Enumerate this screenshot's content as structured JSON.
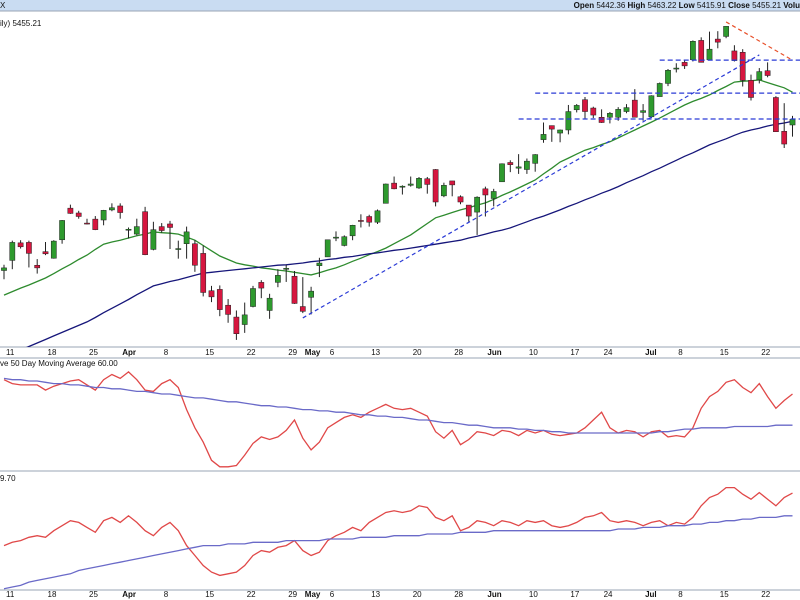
{
  "chart_data": [
    {
      "type": "candlestick",
      "symbol": "X",
      "title": "ily) 5455.21",
      "quote": [
        {
          "label": "Open",
          "value": "5442.36"
        },
        {
          "label": "High",
          "value": "5463.22"
        },
        {
          "label": "Low",
          "value": "5415.91"
        },
        {
          "label": "Close",
          "value": "5455.21"
        },
        {
          "label": "Volu"
        }
      ],
      "categories": [
        "11",
        null,
        null,
        null,
        null,
        "18",
        null,
        null,
        null,
        null,
        "25",
        null,
        null,
        null,
        "Apr",
        null,
        null,
        null,
        null,
        "8",
        null,
        null,
        null,
        null,
        "15",
        null,
        null,
        null,
        null,
        "22",
        null,
        null,
        null,
        null,
        "29",
        null,
        "May",
        null,
        null,
        "6",
        null,
        null,
        null,
        null,
        "13",
        null,
        null,
        null,
        null,
        "20",
        null,
        null,
        null,
        null,
        "28",
        null,
        null,
        null,
        "Jun",
        null,
        null,
        null,
        null,
        "10",
        null,
        null,
        null,
        null,
        "17",
        null,
        null,
        null,
        "24",
        null,
        null,
        null,
        null,
        "Jul",
        null,
        null,
        null,
        "8",
        null,
        null,
        null,
        null,
        "15",
        null,
        null,
        null,
        null,
        "22",
        null,
        null,
        null,
        null
      ],
      "open": [
        5111,
        5134,
        5174,
        5175,
        5123,
        5154,
        5139,
        5181,
        5253,
        5242,
        5219,
        5228,
        5226,
        5249,
        5258,
        5204,
        5194,
        5245,
        5159,
        5211,
        5217,
        5159,
        5172,
        5172,
        5150,
        5065,
        5068,
        5032,
        5005,
        4988,
        5029,
        5084,
        5020,
        5084,
        5114,
        5098,
        5029,
        5050,
        5122,
        5142,
        5187,
        5168,
        5190,
        5225,
        5234,
        5221,
        5264,
        5310,
        5303,
        5305,
        5299,
        5320,
        5341,
        5281,
        5315,
        5279,
        5260,
        5244,
        5297,
        5275,
        5313,
        5357,
        5344,
        5341,
        5355,
        5409,
        5441,
        5424,
        5431,
        5477,
        5500,
        5481,
        5460,
        5460,
        5460,
        5473,
        5499,
        5471,
        5461,
        5507,
        5537,
        5572,
        5585,
        5591,
        5635,
        5591,
        5638,
        5644,
        5611,
        5608,
        5544,
        5545,
        5566,
        5505,
        5428,
        5442.36
      ],
      "high": [
        5124,
        5179,
        5180,
        5179,
        5137,
        5176,
        5180,
        5226,
        5261,
        5247,
        5229,
        5235,
        5249,
        5264,
        5264,
        5209,
        5229,
        5256,
        5222,
        5219,
        5224,
        5179,
        5211,
        5180,
        5168,
        5076,
        5077,
        5046,
        5020,
        5038,
        5076,
        5089,
        5058,
        5114,
        5124,
        5110,
        5096,
        5074,
        5140,
        5181,
        5200,
        5191,
        5215,
        5239,
        5238,
        5250,
        5309,
        5325,
        5305,
        5325,
        5324,
        5324,
        5342,
        5311,
        5315,
        5282,
        5260,
        5280,
        5302,
        5297,
        5355,
        5362,
        5376,
        5366,
        5376,
        5448,
        5441,
        5432,
        5488,
        5490,
        5506,
        5484,
        5478,
        5472,
        5483,
        5490,
        5524,
        5490,
        5510,
        5539,
        5570,
        5583,
        5590,
        5635,
        5642,
        5655,
        5656,
        5667,
        5624,
        5615,
        5557,
        5572,
        5585,
        5508,
        5492,
        5463.22
      ],
      "low": [
        5091,
        5114,
        5161,
        5118,
        5104,
        5146,
        5138,
        5172,
        5240,
        5229,
        5216,
        5203,
        5214,
        5246,
        5229,
        5184,
        5191,
        5146,
        5157,
        5197,
        5160,
        5138,
        5138,
        5108,
        5052,
        5039,
        5007,
        4992,
        4953,
        4969,
        5027,
        5048,
        5001,
        5073,
        5085,
        5035,
        5014,
        5011,
        5096,
        5142,
        5178,
        5166,
        5180,
        5209,
        5211,
        5217,
        5264,
        5296,
        5284,
        5302,
        5297,
        5286,
        5257,
        5278,
        5280,
        5262,
        5222,
        5192,
        5234,
        5257,
        5313,
        5335,
        5331,
        5331,
        5336,
        5402,
        5404,
        5403,
        5421,
        5471,
        5455,
        5458,
        5447,
        5446,
        5452,
        5469,
        5460,
        5452,
        5458,
        5507,
        5531,
        5562,
        5570,
        5587,
        5585,
        5590,
        5617,
        5640,
        5587,
        5530,
        5498,
        5537,
        5551,
        5427,
        5390,
        5415.91
      ],
      "close": [
        5117,
        5175,
        5165,
        5150,
        5117,
        5149,
        5178,
        5225,
        5241,
        5234,
        5218,
        5204,
        5248,
        5254,
        5243,
        5205,
        5211,
        5147,
        5204,
        5202,
        5209,
        5161,
        5199,
        5123,
        5061,
        5051,
        5022,
        5011,
        4967,
        5010,
        5070,
        5071,
        5048,
        5100,
        5116,
        5036,
        5018,
        5064,
        5128,
        5181,
        5187,
        5188,
        5214,
        5223,
        5221,
        5247,
        5308,
        5297,
        5303,
        5308,
        5321,
        5307,
        5267,
        5305,
        5306,
        5267,
        5235,
        5278,
        5283,
        5291,
        5354,
        5352,
        5347,
        5360,
        5375,
        5421,
        5433,
        5431,
        5473,
        5487,
        5473,
        5465,
        5448,
        5469,
        5478,
        5482,
        5460,
        5475,
        5509,
        5537,
        5567,
        5572,
        5577,
        5633,
        5585,
        5615,
        5631,
        5667,
        5589,
        5544,
        5505,
        5564,
        5555,
        5427,
        5399,
        5455.21
      ],
      "up_color": "#2e9a2e",
      "down_color": "#d6163f",
      "series": [
        {
          "color": "#2e8b2e",
          "values": [
            5055,
            5063,
            5071,
            5078,
            5086,
            5094,
            5104,
            5115,
            5125,
            5136,
            5146,
            5159,
            5171,
            5176,
            5180,
            5185,
            5190,
            5194,
            5199,
            5197,
            5196,
            5194,
            5187,
            5180,
            5168,
            5156,
            5144,
            5136,
            5128,
            5124,
            5121,
            5117,
            5115,
            5112,
            5110,
            5107,
            5104,
            5101,
            5106,
            5112,
            5117,
            5124,
            5132,
            5139,
            5147,
            5154,
            5162,
            5172,
            5182,
            5192,
            5205,
            5218,
            5231,
            5237,
            5243,
            5249,
            5254,
            5260,
            5265,
            5273,
            5282,
            5290,
            5299,
            5308,
            5317,
            5331,
            5344,
            5358,
            5367,
            5376,
            5385,
            5391,
            5398,
            5404,
            5413,
            5422,
            5431,
            5440,
            5449,
            5458,
            5468,
            5478,
            5488,
            5496,
            5503,
            5511,
            5521,
            5530,
            5540,
            5542,
            5543,
            5545,
            5539,
            5533,
            5527,
            5517
          ]
        },
        {
          "color": "#16167a",
          "values": [
            null,
            null,
            4930,
            4938,
            4946,
            4954,
            4962,
            4970,
            4978,
            4986,
            4994,
            5004,
            5015,
            5025,
            5035,
            5045,
            5056,
            5066,
            5076,
            5081,
            5086,
            5090,
            5095,
            5100,
            5105,
            5107,
            5109,
            5111,
            5113,
            5115,
            5117,
            5119,
            5121,
            5123,
            5124,
            5126,
            5128,
            5131,
            5133,
            5136,
            5138,
            5141,
            5143,
            5146,
            5149,
            5151,
            5154,
            5157,
            5159,
            5162,
            5165,
            5168,
            5171,
            5174,
            5177,
            5180,
            5185,
            5189,
            5194,
            5199,
            5203,
            5208,
            5215,
            5222,
            5229,
            5235,
            5242,
            5249,
            5257,
            5264,
            5272,
            5279,
            5287,
            5294,
            5302,
            5311,
            5319,
            5327,
            5336,
            5344,
            5353,
            5362,
            5371,
            5379,
            5388,
            5397,
            5404,
            5411,
            5419,
            5426,
            5431,
            5435,
            5440,
            5444,
            5447,
            5451
          ]
        }
      ],
      "trendlines": [
        {
          "color": "#2b3bd6",
          "x": [
            36,
            91
          ],
          "values": [
            5003,
            5602
          ]
        },
        {
          "color": "#e8502a",
          "x": [
            87,
            95
          ],
          "values": [
            5677,
            5590
          ]
        }
      ],
      "levels": [
        {
          "color": "#2b3bd6",
          "x": 79,
          "value": 5590
        },
        {
          "color": "#2b3bd6",
          "x": 64,
          "value": 5515
        },
        {
          "color": "#2b3bd6",
          "x": 62,
          "value": 5456
        }
      ],
      "ylim": [
        4930,
        5686
      ]
    },
    {
      "type": "line",
      "title": "ve 50 Day Moving Average 60.00",
      "series": [
        {
          "color": "#e04848",
          "values": [
            71,
            68,
            67,
            67,
            67,
            63,
            66,
            68,
            70,
            71,
            67,
            63,
            71,
            75,
            72,
            77,
            71,
            63,
            62,
            68,
            71,
            65,
            48,
            34,
            23,
            9,
            4,
            4,
            5,
            13,
            22,
            27,
            25,
            27,
            32,
            40,
            26,
            17,
            23,
            34,
            38,
            42,
            44,
            42,
            46,
            49,
            52,
            49,
            48,
            49,
            46,
            43,
            31,
            26,
            32,
            21,
            25,
            31,
            30,
            28,
            32,
            31,
            28,
            32,
            30,
            32,
            29,
            28,
            29,
            30,
            34,
            40,
            46,
            34,
            30,
            32,
            31,
            27,
            31,
            32,
            27,
            28,
            27,
            34,
            49,
            58,
            62,
            69,
            71,
            65,
            61,
            68,
            58,
            49,
            55,
            60
          ]
        },
        {
          "color": "#6a6ac8",
          "values": [
            72,
            71,
            71,
            70,
            70,
            69,
            68,
            68,
            67,
            67,
            66,
            65,
            65,
            64,
            64,
            63,
            62,
            62,
            61,
            60,
            60,
            59,
            58,
            57,
            57,
            56,
            55,
            54,
            54,
            53,
            52,
            51,
            51,
            50,
            50,
            49,
            48,
            48,
            47,
            47,
            46,
            46,
            45,
            44,
            44,
            43,
            43,
            42,
            42,
            41,
            40,
            40,
            39,
            38,
            38,
            37,
            36,
            36,
            35,
            34,
            34,
            34,
            33,
            33,
            32,
            32,
            31,
            31,
            30,
            30,
            30,
            30,
            30,
            30,
            30,
            30,
            30,
            30,
            30,
            31,
            31,
            32,
            33,
            33,
            34,
            34,
            34,
            34,
            35,
            35,
            35,
            35,
            35,
            36,
            36,
            36
          ]
        }
      ],
      "ylim": [
        0,
        80
      ]
    },
    {
      "type": "line",
      "title": "9.70",
      "categories": [
        "11",
        null,
        null,
        null,
        null,
        "18",
        null,
        null,
        null,
        null,
        "25",
        null,
        null,
        null,
        "Apr",
        null,
        null,
        null,
        null,
        "8",
        null,
        null,
        null,
        null,
        "15",
        null,
        null,
        null,
        null,
        "22",
        null,
        null,
        null,
        null,
        "29",
        null,
        "May",
        null,
        null,
        "6",
        null,
        null,
        null,
        null,
        "13",
        null,
        null,
        null,
        null,
        "20",
        null,
        null,
        null,
        null,
        "28",
        null,
        null,
        null,
        "Jun",
        null,
        null,
        null,
        null,
        "10",
        null,
        null,
        null,
        null,
        "17",
        null,
        null,
        null,
        "24",
        null,
        null,
        null,
        null,
        "Jul",
        null,
        null,
        null,
        "8",
        null,
        null,
        null,
        null,
        "15",
        null,
        null,
        null,
        null,
        "22",
        null,
        null,
        null,
        null
      ],
      "series": [
        {
          "color": "#e04848",
          "values": [
            48,
            50,
            51,
            53,
            54,
            53,
            57,
            60,
            63,
            62,
            59,
            56,
            63,
            65,
            62,
            66,
            62,
            57,
            54,
            59,
            62,
            57,
            48,
            42,
            36,
            32,
            30,
            31,
            32,
            36,
            42,
            45,
            44,
            47,
            48,
            51,
            45,
            42,
            44,
            51,
            54,
            56,
            59,
            57,
            62,
            65,
            68,
            69,
            68,
            69,
            72,
            71,
            65,
            63,
            66,
            57,
            59,
            63,
            62,
            60,
            63,
            62,
            60,
            63,
            62,
            63,
            60,
            59,
            60,
            62,
            65,
            66,
            68,
            63,
            62,
            63,
            62,
            60,
            62,
            63,
            60,
            62,
            61,
            65,
            72,
            77,
            79,
            83,
            83,
            79,
            76,
            80,
            76,
            72,
            77,
            79.7
          ]
        },
        {
          "color": "#6a6ac8",
          "values": [
            22,
            23,
            24,
            26,
            27,
            28,
            29,
            30,
            31,
            33,
            34,
            35,
            36,
            37,
            38,
            39,
            40,
            41,
            42,
            43,
            44,
            45,
            46,
            47,
            48,
            48,
            48,
            49,
            49,
            49,
            50,
            50,
            50,
            50,
            51,
            51,
            51,
            51,
            51,
            52,
            52,
            52,
            52,
            53,
            53,
            53,
            53,
            54,
            54,
            54,
            54,
            55,
            55,
            55,
            55,
            56,
            56,
            56,
            56,
            57,
            57,
            57,
            57,
            57,
            57,
            57,
            57,
            57,
            57,
            57,
            57,
            57,
            57,
            57,
            58,
            58,
            58,
            59,
            59,
            59,
            60,
            60,
            60,
            61,
            61,
            62,
            62,
            63,
            63,
            64,
            64,
            65,
            65,
            65,
            66,
            66
          ]
        }
      ],
      "ylim": [
        20,
        90
      ]
    }
  ]
}
